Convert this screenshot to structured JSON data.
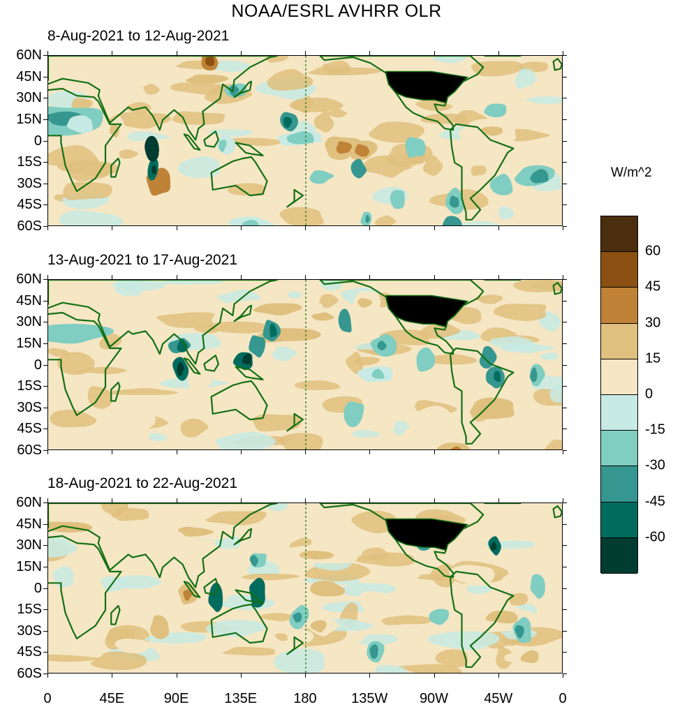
{
  "title": "NOAA/ESRL AVHRR OLR",
  "panels": [
    {
      "title": "8-Aug-2021 to 12-Aug-2021",
      "variant": 0
    },
    {
      "title": "13-Aug-2021 to 17-Aug-2021",
      "variant": 1
    },
    {
      "title": "18-Aug-2021 to 22-Aug-2021",
      "variant": 2
    }
  ],
  "y_axis_labels": [
    "60N",
    "45N",
    "30N",
    "15N",
    "0",
    "15S",
    "30S",
    "45S",
    "60S"
  ],
  "x_axis_labels": [
    "0",
    "45E",
    "90E",
    "135E",
    "180",
    "135W",
    "90W",
    "45W",
    "0"
  ],
  "colorbar": {
    "unit": "W/m^2",
    "labels": [
      "60",
      "45",
      "30",
      "15",
      "0",
      "-15",
      "-30",
      "-45",
      "-60"
    ],
    "colors": [
      "#4b2e0d",
      "#8b5012",
      "#bf8236",
      "#dfc07e",
      "#f5e6c4",
      "#c7eae4",
      "#80cdc1",
      "#35978f",
      "#016c5e",
      "#013c30"
    ]
  },
  "colors": {
    "coastline": "#136f13",
    "land_usa": "#000000",
    "dateline": "#136f13"
  }
}
